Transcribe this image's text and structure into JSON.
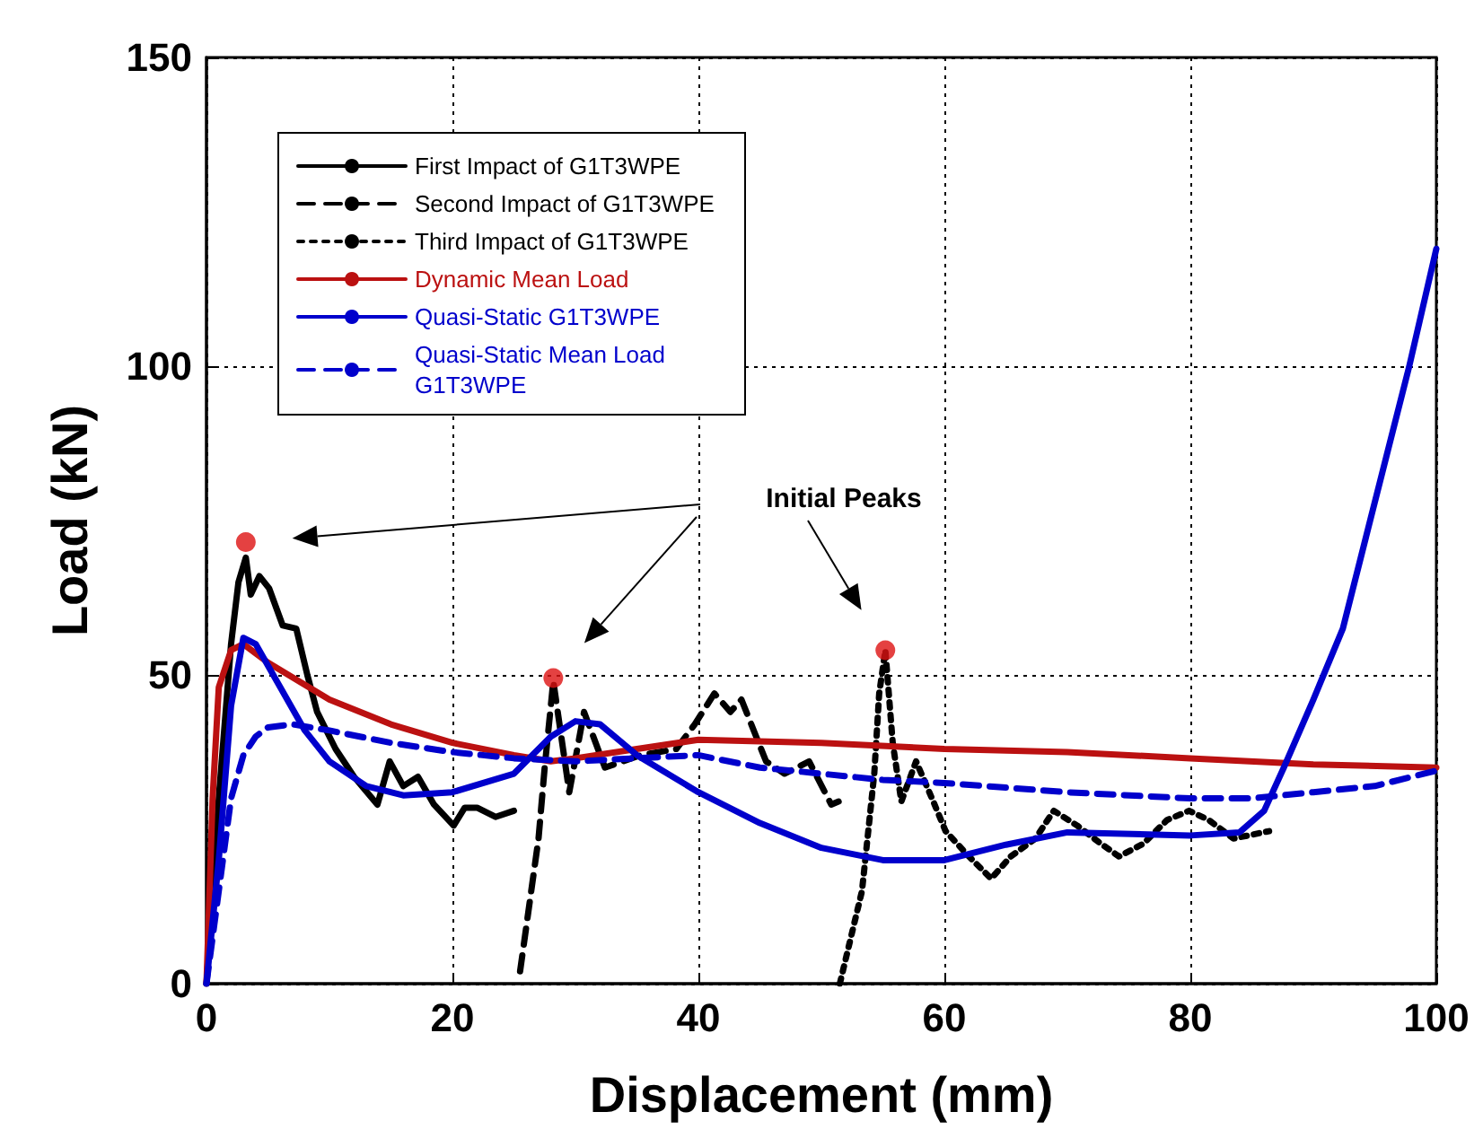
{
  "chart_data": {
    "type": "line",
    "xlabel": "Displacement (mm)",
    "ylabel": "Load (kN)",
    "xlim": [
      0,
      100
    ],
    "xticks": [
      0,
      20,
      40,
      60,
      80,
      100
    ],
    "ylim": [
      0,
      150
    ],
    "yticks": [
      0,
      50,
      100,
      150
    ],
    "grid": true,
    "legend": "top left",
    "marker": "none",
    "annotations": [
      "Initial Peaks"
    ],
    "series": [
      {
        "name": "First Impact of G1T3WPE",
        "color": "#000000",
        "line_style": "solid",
        "x": [
          0,
          1,
          2,
          2.6,
          3.2,
          3.6,
          4.3,
          5.1,
          6.2,
          7.3,
          8.2,
          9,
          10.5,
          12,
          13.9,
          14.9,
          16,
          17.2,
          18.5,
          20.1,
          21,
          22,
          23.5,
          25
        ],
        "values": [
          0,
          30,
          55,
          65,
          69,
          63,
          66,
          64,
          58,
          57.5,
          50,
          44,
          38,
          33.5,
          29,
          36,
          32,
          33.5,
          29,
          25.6,
          28.5,
          28.5,
          27,
          28
        ]
      },
      {
        "name": "Second Impact of G1T3WPE",
        "color": "#000000",
        "line_style": "dashed",
        "x": [
          25.5,
          27,
          27.5,
          28.2,
          29.5,
          30.7,
          32.4,
          35.3,
          38.2,
          39.7,
          41.3,
          42.6,
          43.5,
          45.5,
          47,
          49,
          50.8,
          51.4
        ],
        "values": [
          2,
          23.5,
          35,
          49,
          31,
          44,
          35,
          37,
          38,
          42,
          47,
          44,
          46,
          36,
          34,
          36,
          29,
          29.5
        ]
      },
      {
        "name": "Third Impact of G1T3WPE",
        "color": "#000000",
        "line_style": "dotted",
        "x": [
          51.5,
          53.3,
          54.3,
          54.7,
          55.2,
          55.8,
          56.5,
          57.7,
          59.1,
          60.1,
          62,
          63.8,
          65.4,
          67.4,
          68.9,
          70.8,
          72.7,
          74.2,
          76.2,
          78.1,
          79.9,
          81.5,
          83.5,
          86.4
        ],
        "values": [
          0,
          15,
          34,
          47,
          54,
          39,
          29.5,
          36,
          29.5,
          24.7,
          20.6,
          17,
          20.6,
          23.5,
          28,
          25.6,
          22.7,
          20.6,
          22.7,
          26.5,
          28,
          26.5,
          23.5,
          24.7
        ]
      },
      {
        "name": "Dynamic Mean Load",
        "color": "#bb1111",
        "line_style": "solid",
        "x": [
          0,
          0.5,
          1,
          2,
          3,
          5,
          10,
          15,
          20,
          25,
          28,
          30,
          35,
          40,
          50,
          60,
          70,
          80,
          90,
          100
        ],
        "values": [
          0,
          30,
          48,
          54,
          55,
          52,
          46,
          42,
          39,
          37,
          36,
          36.5,
          38,
          39.5,
          39,
          38,
          37.5,
          36.5,
          35.5,
          35
        ]
      },
      {
        "name": "Quasi-Static G1T3WPE",
        "color": "#0000cc",
        "line_style": "solid",
        "x": [
          0,
          1,
          2,
          3,
          4,
          6,
          8,
          10,
          13,
          16,
          20,
          25,
          28,
          30,
          32,
          35,
          40,
          45,
          50,
          55,
          60,
          65,
          70,
          80,
          84,
          86,
          87.6,
          90,
          92.4,
          95,
          97.8,
          100
        ],
        "values": [
          0,
          20,
          45,
          56,
          55,
          48,
          41,
          36,
          32,
          30.5,
          31,
          34,
          40,
          42.5,
          42,
          37,
          31,
          26,
          22,
          20,
          20,
          22.5,
          24.5,
          24,
          24.5,
          28,
          35,
          46,
          57.5,
          78,
          100,
          119
        ]
      },
      {
        "name": "Quasi-Static Mean Load G1T3WPE",
        "color": "#0000cc",
        "line_style": "dashed",
        "x": [
          0,
          1,
          2,
          3,
          4,
          5,
          7,
          10,
          15,
          20,
          25,
          30,
          35,
          40,
          45,
          50,
          55,
          60,
          70,
          80,
          85,
          90,
          95,
          100
        ],
        "values": [
          0,
          15,
          30,
          37,
          40,
          41.5,
          42,
          41,
          39,
          37.5,
          36.5,
          36,
          36.5,
          37,
          35,
          34,
          33,
          32.5,
          31,
          30,
          30,
          31,
          32,
          34.5
        ]
      },
      {
        "type": "scatter",
        "marker": "circle",
        "color": "#dd1111",
        "x": [
          3.2,
          28.2,
          55.2
        ],
        "values": [
          71.5,
          49.5,
          54
        ]
      }
    ]
  }
}
